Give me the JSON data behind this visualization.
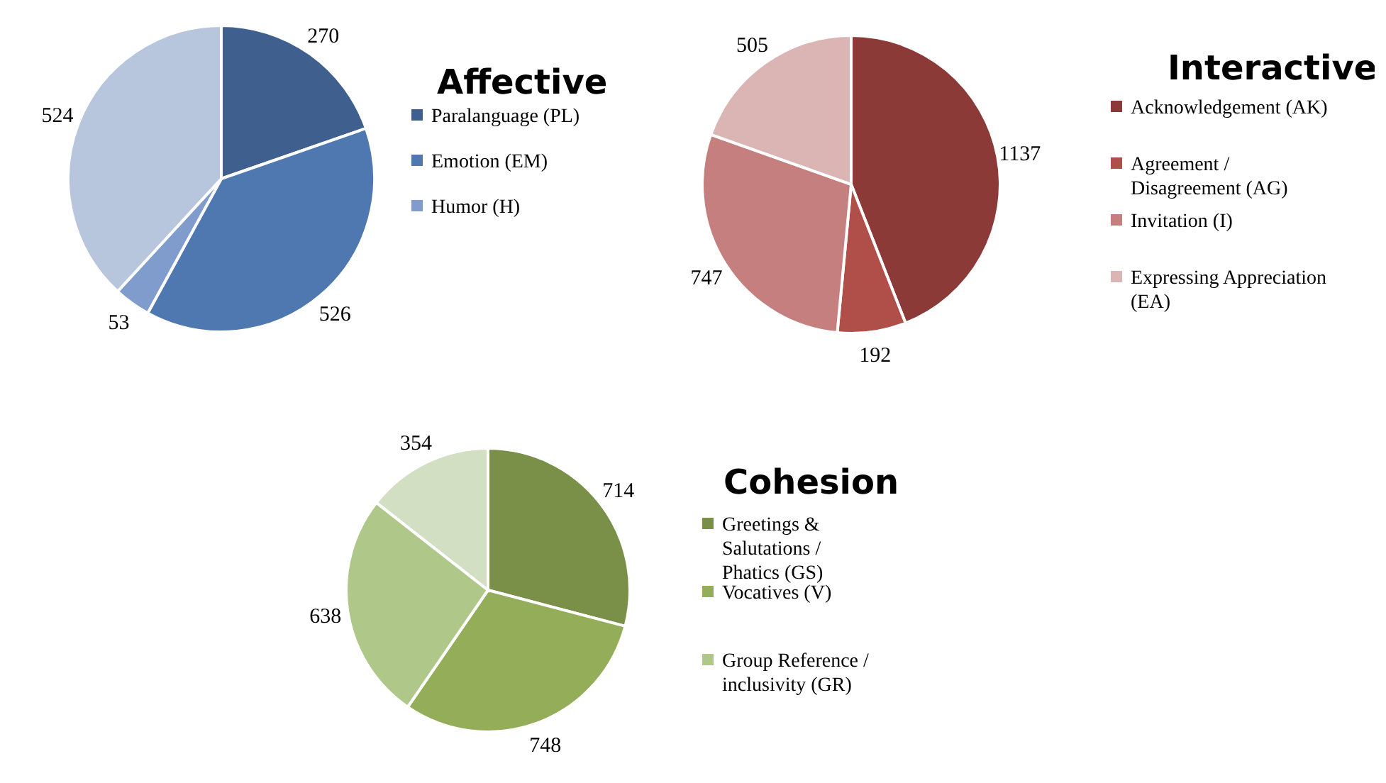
{
  "chart_data": [
    {
      "type": "pie",
      "title": "Affective",
      "categories": [
        "Paralanguage (PL)",
        "Emotion (EM)",
        "Humor (H)",
        null
      ],
      "values": [
        270,
        526,
        53,
        524
      ],
      "colors": [
        "#3f5f8f",
        "#4f78b0",
        "#7f9ccc",
        "#b7c5dd"
      ],
      "data_labels": true,
      "legend": "right"
    },
    {
      "type": "pie",
      "title": "Interactive",
      "categories": [
        "Acknowledgement (AK)",
        "Agreement / Disagreement (AG)",
        "Invitation (I)",
        "Expressing Appreciation (EA)"
      ],
      "values": [
        1137,
        192,
        747,
        505
      ],
      "colors": [
        "#8b3a38",
        "#b04e4a",
        "#c47f7e",
        "#dbb5b4"
      ],
      "data_labels": true,
      "legend": "right"
    },
    {
      "type": "pie",
      "title": "Cohesion",
      "categories": [
        "Greetings & Salutations / Phatics (GS)",
        "Vocatives (V)",
        "Group Reference / inclusivity (GR)",
        null
      ],
      "values": [
        714,
        748,
        638,
        354
      ],
      "colors": [
        "#7a8f47",
        "#93ad58",
        "#b0c78a",
        "#d3dfc2"
      ],
      "data_labels": true,
      "legend": "right"
    }
  ]
}
